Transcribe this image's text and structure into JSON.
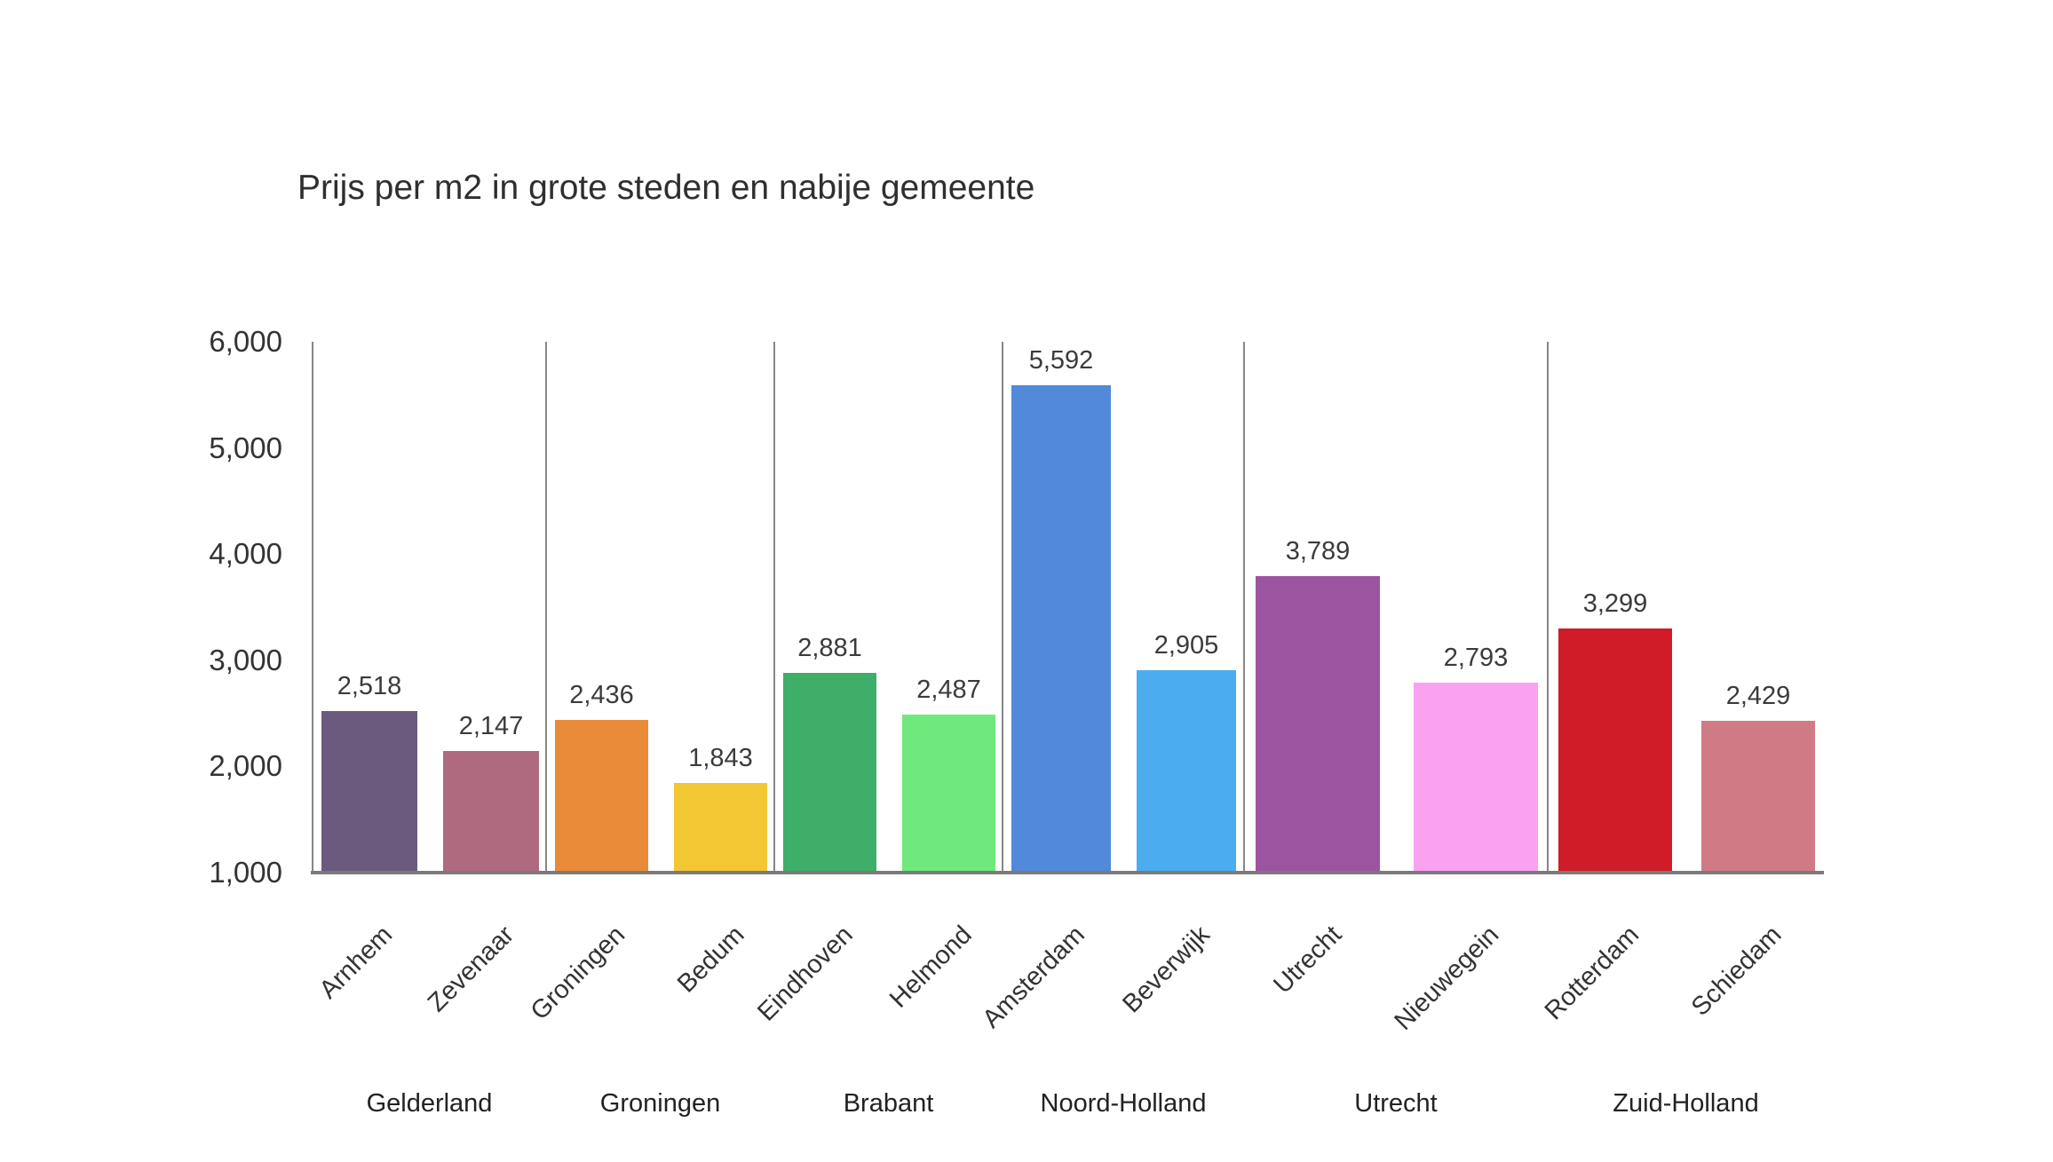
{
  "title": "Prijs per m2 in grote steden en nabije gemeente",
  "chart_data": {
    "type": "bar",
    "title": "Prijs per m2 in grote steden en nabije gemeente",
    "xlabel": "",
    "ylabel": "",
    "y_axis": {
      "min": 1000,
      "max": 6000,
      "ticks": [
        6000,
        5000,
        4000,
        3000,
        2000,
        1000
      ],
      "tick_labels": [
        "6,000",
        "5,000",
        "4,000",
        "3,000",
        "2,000",
        "1,000"
      ]
    },
    "grid": false,
    "legend": "none",
    "layout": {
      "axis_color": "#878787",
      "baseline_color": "#7a7a7a",
      "text_color": "#333333",
      "background_color": "#ffffff"
    },
    "groups": [
      {
        "province": "Gelderland",
        "bars": [
          {
            "city": "Arnhem",
            "value": 2518,
            "label": "2,518",
            "color": "#6b5a7d"
          },
          {
            "city": "Zevenaar",
            "value": 2147,
            "label": "2,147",
            "color": "#b06a80"
          }
        ]
      },
      {
        "province": "Groningen",
        "bars": [
          {
            "city": "Groningen",
            "value": 2436,
            "label": "2,436",
            "color": "#e98b38"
          },
          {
            "city": "Bedum",
            "value": 1843,
            "label": "1,843",
            "color": "#f3c734"
          }
        ]
      },
      {
        "province": "Brabant",
        "bars": [
          {
            "city": "Eindhoven",
            "value": 2881,
            "label": "2,881",
            "color": "#3fae68"
          },
          {
            "city": "Helmond",
            "value": 2487,
            "label": "2,487",
            "color": "#6fe87d"
          }
        ]
      },
      {
        "province": "Noord-Holland",
        "bars": [
          {
            "city": "Amsterdam",
            "value": 5592,
            "label": "5,592",
            "color": "#5289d8"
          },
          {
            "city": "Beverwijk",
            "value": 2905,
            "label": "2,905",
            "color": "#4cadee"
          }
        ]
      },
      {
        "province": "Utrecht",
        "bars": [
          {
            "city": "Utrecht",
            "value": 3789,
            "label": "3,789",
            "color": "#9c54a0"
          },
          {
            "city": "Nieuwegein",
            "value": 2793,
            "label": "2,793",
            "color": "#fba1f1"
          }
        ]
      },
      {
        "province": "Zuid-Holland",
        "bars": [
          {
            "city": "Rotterdam",
            "value": 3299,
            "label": "3,299",
            "color": "#d01b28"
          },
          {
            "city": "Schiedam",
            "value": 2429,
            "label": "2,429",
            "color": "#d07a85"
          }
        ]
      }
    ]
  }
}
